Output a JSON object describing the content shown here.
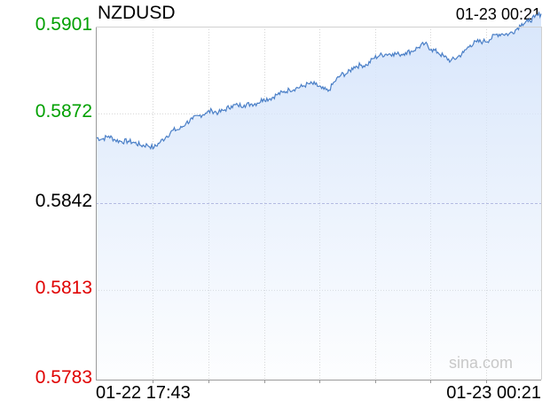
{
  "header": {
    "symbol": "NZDUSD",
    "timestamp": "01-23 00:21"
  },
  "watermark": "sina.com",
  "colors": {
    "up": "#00a000",
    "down": "#e00000",
    "flat": "#000000",
    "line": "#4a7fc7",
    "fill": "#d8e6fb"
  },
  "chart_data": {
    "type": "area",
    "title": "NZDUSD",
    "y_ticks": [
      {
        "label": "0.5901",
        "value": 0.5901,
        "color": "up"
      },
      {
        "label": "0.5872",
        "value": 0.5872,
        "color": "up"
      },
      {
        "label": "0.5842",
        "value": 0.5842,
        "color": "flat"
      },
      {
        "label": "0.5813",
        "value": 0.5813,
        "color": "down"
      },
      {
        "label": "0.5783",
        "value": 0.5783,
        "color": "down"
      }
    ],
    "x_tick_labels": [
      "01-22 17:43",
      "01-23 00:21"
    ],
    "ylim": [
      0.5783,
      0.5901
    ],
    "reference_value": 0.5842,
    "grid": true,
    "series": [
      {
        "values": [
          0.58639,
          0.58634,
          0.58644,
          0.58631,
          0.58626,
          0.58627,
          0.58622,
          0.58613,
          0.58614,
          0.58605,
          0.58625,
          0.58644,
          0.58664,
          0.58667,
          0.58688,
          0.58701,
          0.58712,
          0.58721,
          0.58729,
          0.58722,
          0.58732,
          0.58745,
          0.58747,
          0.58748,
          0.58751,
          0.58754,
          0.58768,
          0.58769,
          0.58782,
          0.5879,
          0.58799,
          0.58804,
          0.5881,
          0.58819,
          0.58817,
          0.58803,
          0.58794,
          0.58826,
          0.58849,
          0.58854,
          0.58876,
          0.58881,
          0.58881,
          0.58904,
          0.58914,
          0.58918,
          0.5892,
          0.58917,
          0.58923,
          0.58928,
          0.58941,
          0.58953,
          0.58934,
          0.58924,
          0.58909,
          0.58896,
          0.58907,
          0.58924,
          0.58948,
          0.58959,
          0.5896,
          0.58966,
          0.58984,
          0.58986,
          0.58985,
          0.58998,
          0.5902,
          0.59027,
          0.59041,
          0.59053
        ]
      }
    ]
  }
}
